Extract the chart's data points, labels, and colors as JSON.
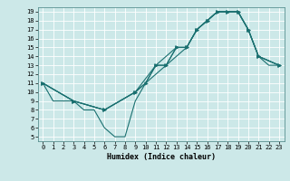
{
  "xlabel": "Humidex (Indice chaleur)",
  "bg_color": "#cce8e8",
  "grid_color": "#ffffff",
  "line_color": "#1a7070",
  "xlim": [
    -0.5,
    23.5
  ],
  "ylim": [
    4.5,
    19.5
  ],
  "xticks": [
    0,
    1,
    2,
    3,
    4,
    5,
    6,
    7,
    8,
    9,
    10,
    11,
    12,
    13,
    14,
    15,
    16,
    17,
    18,
    19,
    20,
    21,
    22,
    23
  ],
  "yticks": [
    5,
    6,
    7,
    8,
    9,
    10,
    11,
    12,
    13,
    14,
    15,
    16,
    17,
    18,
    19
  ],
  "series": [
    {
      "x": [
        0,
        1,
        2,
        3,
        4,
        5,
        6,
        7,
        8,
        9,
        10,
        11,
        12,
        13,
        14,
        15,
        16,
        17,
        18,
        19,
        20,
        21,
        22,
        23
      ],
      "y": [
        11,
        9,
        9,
        9,
        8,
        8,
        6,
        5,
        5,
        9,
        11,
        13,
        13,
        15,
        15,
        17,
        18,
        19,
        19,
        19,
        17,
        14,
        13,
        13
      ],
      "marker": null
    },
    {
      "x": [
        0,
        3,
        6,
        9,
        10,
        11,
        12,
        13,
        14,
        15,
        16,
        17,
        18,
        19,
        20,
        21,
        23
      ],
      "y": [
        11,
        9,
        8,
        10,
        11,
        13,
        13,
        15,
        15,
        17,
        18,
        19,
        19,
        19,
        17,
        14,
        13
      ],
      "marker": ">"
    },
    {
      "x": [
        0,
        3,
        6,
        9,
        11,
        13,
        14,
        15,
        16,
        17,
        18,
        19,
        20,
        21,
        23
      ],
      "y": [
        11,
        9,
        8,
        10,
        13,
        15,
        15,
        17,
        18,
        19,
        19,
        19,
        17,
        14,
        13
      ],
      "marker": ">"
    },
    {
      "x": [
        0,
        3,
        6,
        9,
        12,
        14,
        15,
        16,
        17,
        18,
        19,
        20,
        21,
        23
      ],
      "y": [
        11,
        9,
        8,
        10,
        13,
        15,
        17,
        18,
        19,
        19,
        19,
        17,
        14,
        13
      ],
      "marker": ">"
    }
  ]
}
